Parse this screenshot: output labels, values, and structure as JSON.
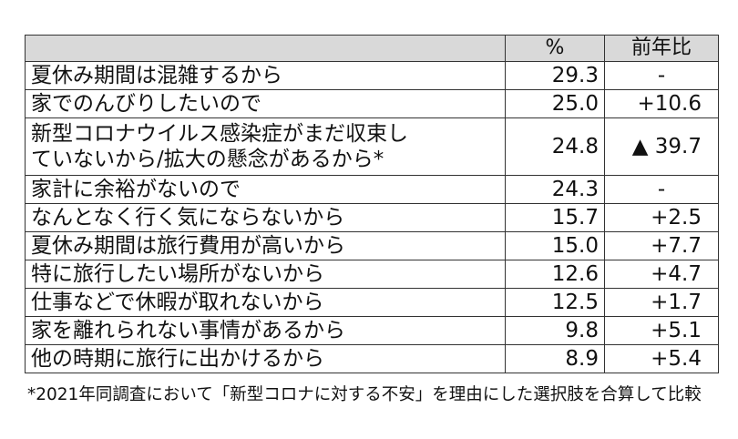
{
  "table": {
    "headers": [
      "",
      "%",
      "前年比"
    ],
    "rows": [
      {
        "label": "夏休み期間は混雑するから",
        "pct": "29.3",
        "yoy": "-"
      },
      {
        "label": "家でのんびりしたいので",
        "pct": "25.0",
        "yoy": "+10.6"
      },
      {
        "label": "新型コロナウイルス感染症がまだ収束していないから/拡大の懸念があるから*",
        "label_line1": "新型コロナウイルス感染症がまだ収束し",
        "label_line2": "ていないから/拡大の懸念があるから*",
        "pct": "24.8",
        "yoy": "▲ 39.7"
      },
      {
        "label": "家計に余裕がないので",
        "pct": "24.3",
        "yoy": "-"
      },
      {
        "label": "なんとなく行く気にならないから",
        "pct": "15.7",
        "yoy": "+2.5"
      },
      {
        "label": "夏休み期間は旅行費用が高いから",
        "pct": "15.0",
        "yoy": "+7.7"
      },
      {
        "label": "特に旅行したい場所がないから",
        "pct": "12.6",
        "yoy": "+4.7"
      },
      {
        "label": "仕事などで休暇が取れないから",
        "pct": "12.5",
        "yoy": "+1.7"
      },
      {
        "label": "家を離れられない事情があるから",
        "pct": "9.8",
        "yoy": "+5.1"
      },
      {
        "label": "他の時期に旅行に出かけるから",
        "pct": "8.9",
        "yoy": "+5.4"
      }
    ]
  },
  "footnote": "*2021年同調査において「新型コロナに対する不安」を理由にした選択肢を合算して比較"
}
